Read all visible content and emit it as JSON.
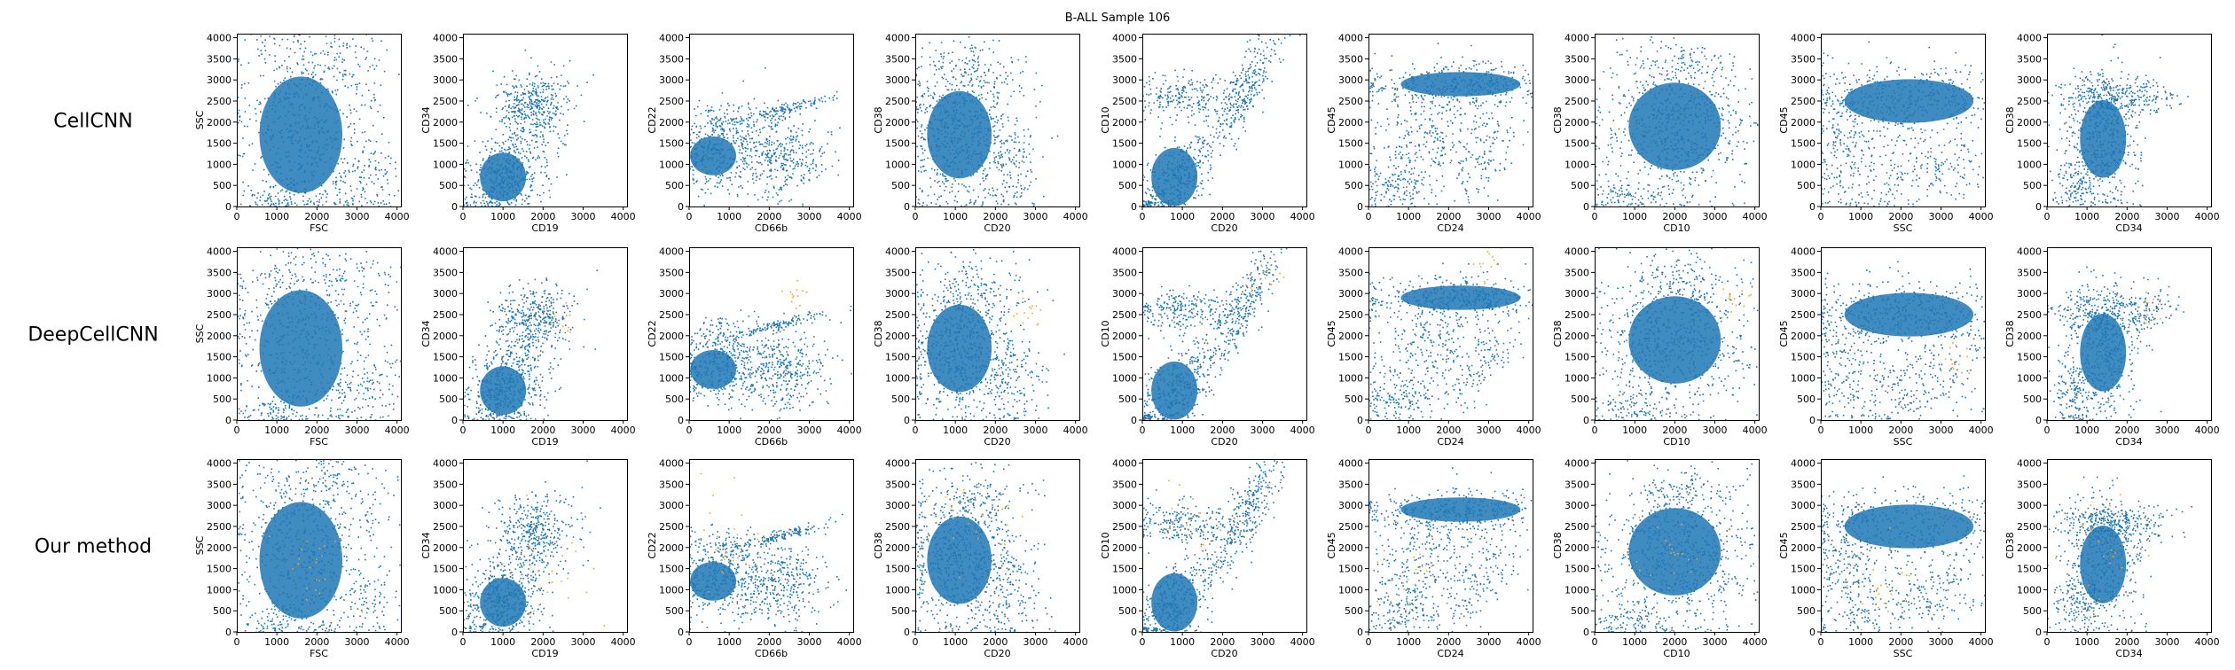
{
  "title": "B-ALL Sample 106",
  "row_labels": [
    "CellCNN",
    "DeepCellCNN",
    "Our method"
  ],
  "colors": {
    "cells": "#1f77b4",
    "highlighted": "#f5a623"
  },
  "chart_data": {
    "type": "scatter",
    "title": "B-ALL Sample 106",
    "xlim": [
      0,
      4096
    ],
    "ylim": [
      0,
      4096
    ],
    "x_ticks": [
      0,
      1000,
      2000,
      3000,
      4000
    ],
    "y_ticks": [
      0,
      500,
      1000,
      1500,
      2000,
      2500,
      3000,
      3500,
      4000
    ],
    "grid": false,
    "series": [
      {
        "name": "cells",
        "color": "#1f77b4"
      },
      {
        "name": "highlighted",
        "color": "#f5a623"
      }
    ],
    "panels": [
      {
        "x": "FSC",
        "y": "SSC"
      },
      {
        "x": "CD19",
        "y": "CD34"
      },
      {
        "x": "CD66b",
        "y": "CD22"
      },
      {
        "x": "CD20",
        "y": "CD38"
      },
      {
        "x": "CD20",
        "y": "CD10"
      },
      {
        "x": "CD24",
        "y": "CD45"
      },
      {
        "x": "CD10",
        "y": "CD38"
      },
      {
        "x": "SSC",
        "y": "CD45"
      },
      {
        "x": "CD34",
        "y": "CD38"
      }
    ]
  }
}
